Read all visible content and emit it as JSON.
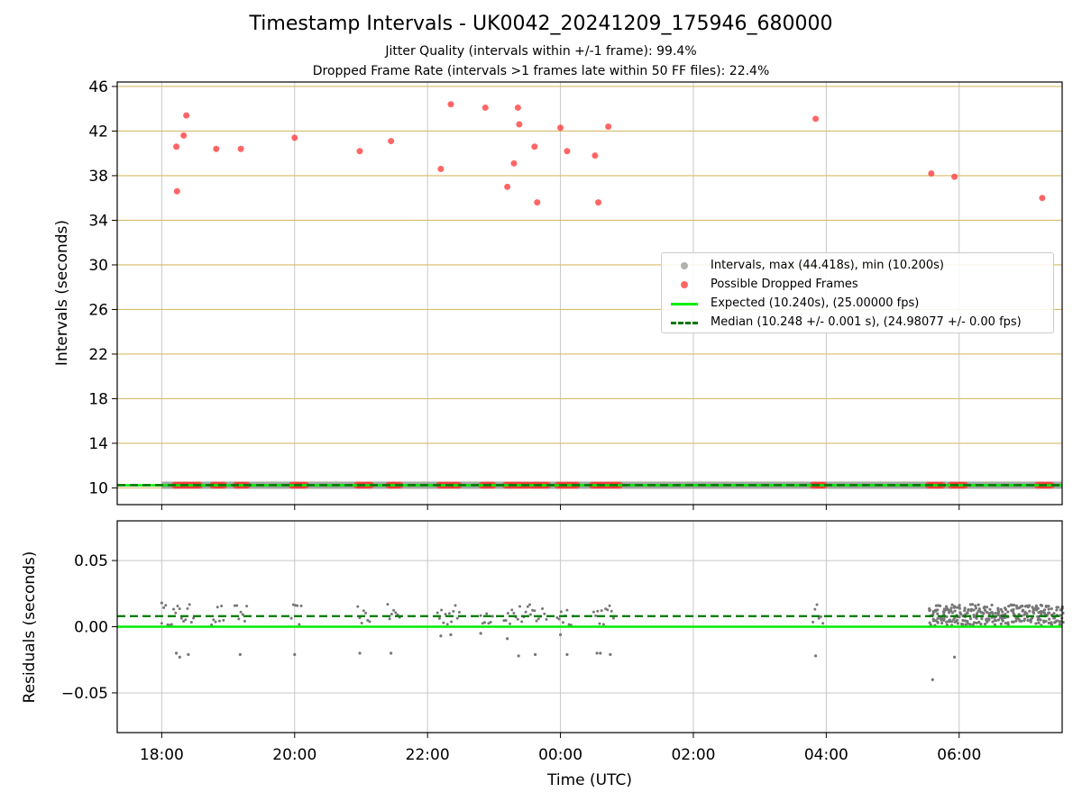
{
  "figure": {
    "title": "Timestamp Intervals - UK0042_20241209_175946_680000",
    "subtitle_1": "Jitter Quality (intervals within +/-1 frame): 99.4%",
    "subtitle_2": "Dropped Frame Rate (intervals >1 frames late within 50 FF files): 22.4%",
    "legend_placement": "center-right of top panel",
    "colors": {
      "intervals": "#999999",
      "dropped": "#ff3333",
      "expected": "#00ee00",
      "median": "#007700",
      "grid_y_top": "#d8bb6a",
      "grid": "#c8c8c8",
      "residuals": "#777777"
    }
  },
  "chart_data": [
    {
      "type": "scatter",
      "panel": "intervals",
      "xlabel": "",
      "ylabel": "Intervals (seconds)",
      "x_tick_labels": [
        "18:00",
        "20:00",
        "22:00",
        "00:00",
        "02:00",
        "04:00",
        "06:00"
      ],
      "x_unit": "hours since 2024-12-09 00:00 UTC",
      "x_ticks": [
        18,
        20,
        22,
        24,
        26,
        28,
        30
      ],
      "xlim": [
        17.33,
        31.55
      ],
      "ylim": [
        8.5,
        46.4
      ],
      "y_ticks": [
        10,
        14,
        18,
        22,
        26,
        30,
        34,
        38,
        42,
        46
      ],
      "grid": true,
      "legend": [
        "Intervals, max (44.418s), min (10.200s)",
        "Possible Dropped Frames",
        "Expected (10.240s), (25.00000 fps)",
        "Median (10.248 +/- 0.001 s), (24.98077 +/- 0.00 fps)"
      ],
      "series": [
        {
          "name": "Intervals, max (44.418s), min (10.200s)",
          "description": "dense band of intervals near 10.24 s spanning the full time range",
          "band_y": 10.24,
          "x_range": [
            18.0,
            31.55
          ]
        },
        {
          "name": "Possible Dropped Frames",
          "points": [
            [
              18.22,
              40.6
            ],
            [
              18.23,
              36.6
            ],
            [
              18.33,
              41.6
            ],
            [
              18.37,
              43.4
            ],
            [
              18.82,
              40.4
            ],
            [
              19.19,
              40.4
            ],
            [
              20.0,
              41.4
            ],
            [
              20.98,
              40.2
            ],
            [
              21.45,
              41.1
            ],
            [
              22.2,
              38.6
            ],
            [
              22.35,
              44.4
            ],
            [
              22.87,
              44.1
            ],
            [
              23.2,
              37.0
            ],
            [
              23.3,
              39.1
            ],
            [
              23.36,
              44.1
            ],
            [
              23.38,
              42.6
            ],
            [
              23.61,
              40.6
            ],
            [
              23.65,
              35.6
            ],
            [
              24.0,
              42.3
            ],
            [
              24.1,
              40.2
            ],
            [
              24.52,
              39.8
            ],
            [
              24.57,
              35.6
            ],
            [
              24.72,
              42.4
            ],
            [
              27.84,
              43.1
            ],
            [
              29.58,
              38.2
            ],
            [
              29.93,
              37.9
            ],
            [
              31.25,
              36.0
            ]
          ],
          "baseline_clusters": [
            [
              18.2,
              18.6
            ],
            [
              18.77,
              18.97
            ],
            [
              19.12,
              19.32
            ],
            [
              19.96,
              20.2
            ],
            [
              20.94,
              21.18
            ],
            [
              21.42,
              21.62
            ],
            [
              22.18,
              22.5
            ],
            [
              22.82,
              23.02
            ],
            [
              23.18,
              23.52
            ],
            [
              23.56,
              23.82
            ],
            [
              23.96,
              24.28
            ],
            [
              24.48,
              24.9
            ],
            [
              27.8,
              28.0
            ],
            [
              29.54,
              29.76
            ],
            [
              29.88,
              30.1
            ],
            [
              31.18,
              31.4
            ]
          ],
          "baseline_y": 10.24
        },
        {
          "name": "Expected (10.240s), (25.00000 fps)",
          "y": 10.24
        },
        {
          "name": "Median (10.248 +/- 0.001 s), (24.98077 +/- 0.00 fps)",
          "y": 10.248
        }
      ]
    },
    {
      "type": "scatter",
      "panel": "residuals",
      "xlabel": "Time (UTC)",
      "ylabel": "Residuals (seconds)",
      "xlim": [
        17.33,
        31.55
      ],
      "x_ticks": [
        18,
        20,
        22,
        24,
        26,
        28,
        30
      ],
      "x_tick_labels": [
        "18:00",
        "20:00",
        "22:00",
        "00:00",
        "02:00",
        "04:00",
        "06:00"
      ],
      "ylim": [
        -0.08,
        0.08
      ],
      "y_ticks": [
        0.05,
        0.0,
        -0.05
      ],
      "y_tick_labels": [
        "0.05",
        "0.00",
        "−0.05"
      ],
      "grid": true,
      "expected_line_y": 0.0,
      "median_line_y": 0.008,
      "series": [
        {
          "name": "Residuals",
          "outliers": [
            [
              18.0,
              0.018
            ],
            [
              18.22,
              -0.02
            ],
            [
              18.27,
              -0.023
            ],
            [
              18.4,
              -0.021
            ],
            [
              19.18,
              -0.021
            ],
            [
              20.0,
              -0.021
            ],
            [
              20.98,
              -0.02
            ],
            [
              21.45,
              -0.02
            ],
            [
              22.2,
              -0.007
            ],
            [
              22.35,
              -0.006
            ],
            [
              22.8,
              -0.005
            ],
            [
              23.2,
              -0.009
            ],
            [
              23.37,
              -0.022
            ],
            [
              23.62,
              -0.021
            ],
            [
              24.0,
              -0.006
            ],
            [
              24.1,
              -0.021
            ],
            [
              24.55,
              -0.02
            ],
            [
              24.6,
              -0.02
            ],
            [
              24.75,
              -0.021
            ],
            [
              27.84,
              -0.022
            ],
            [
              29.6,
              -0.04
            ],
            [
              29.93,
              -0.023
            ]
          ],
          "clusters": [
            [
              18.0,
              18.5
            ],
            [
              18.75,
              18.95
            ],
            [
              19.1,
              19.3
            ],
            [
              19.95,
              20.1
            ],
            [
              20.95,
              21.15
            ],
            [
              21.4,
              21.6
            ],
            [
              22.15,
              22.5
            ],
            [
              22.8,
              23.0
            ],
            [
              23.15,
              23.55
            ],
            [
              23.55,
              23.8
            ],
            [
              23.95,
              24.2
            ],
            [
              24.5,
              24.8
            ],
            [
              27.8,
              27.95
            ]
          ],
          "dense_band_x": [
            29.55,
            31.55
          ],
          "band_range": [
            0.001,
            0.017
          ]
        }
      ]
    }
  ]
}
